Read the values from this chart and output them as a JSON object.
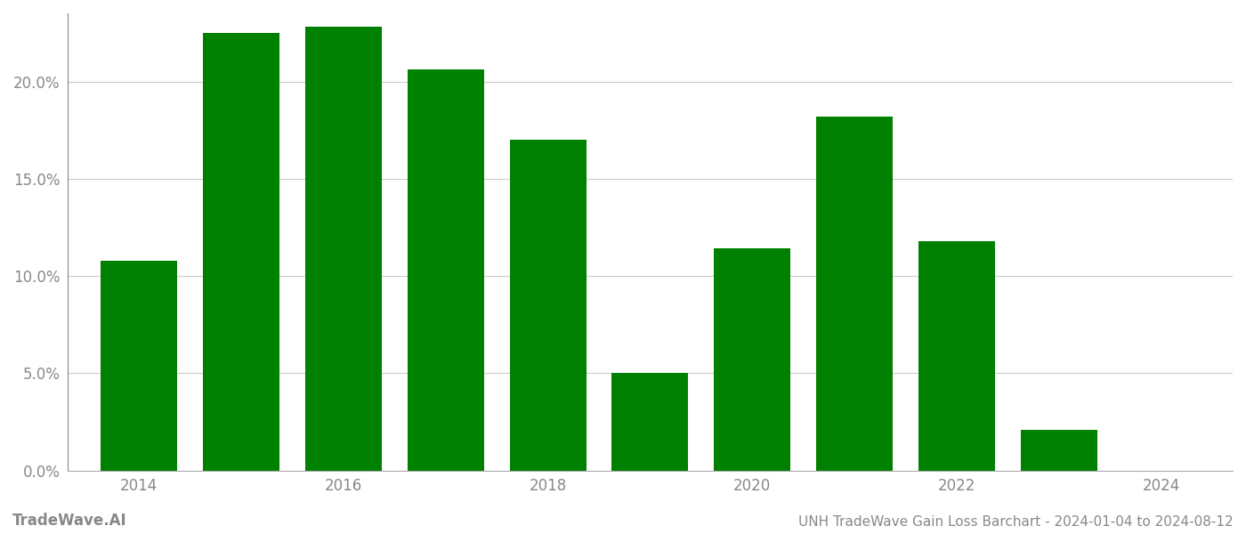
{
  "bar_years": [
    2014,
    2015,
    2016,
    2017,
    2018,
    2019,
    2020,
    2021,
    2022,
    2023
  ],
  "values": [
    10.8,
    22.5,
    22.8,
    20.6,
    17.0,
    5.0,
    11.4,
    18.2,
    11.8,
    2.1
  ],
  "bar_color": "#008000",
  "background_color": "#ffffff",
  "grid_color": "#cccccc",
  "ylim": [
    0,
    23.5
  ],
  "yticks": [
    0.0,
    5.0,
    10.0,
    15.0,
    20.0
  ],
  "xtick_positions": [
    2014,
    2016,
    2018,
    2020,
    2022,
    2024
  ],
  "xtick_labels": [
    "2014",
    "2016",
    "2018",
    "2020",
    "2022",
    "2024"
  ],
  "xlim": [
    2013.3,
    2024.7
  ],
  "bottom_left_text": "TradeWave.AI",
  "bottom_right_text": "UNH TradeWave Gain Loss Barchart - 2024-01-04 to 2024-08-12",
  "bottom_text_color": "#888888",
  "bottom_left_fontsize": 12,
  "bottom_right_fontsize": 11,
  "bar_width": 0.75,
  "tick_fontsize": 12,
  "left_spine_color": "#888888",
  "bottom_spine_color": "#aaaaaa"
}
